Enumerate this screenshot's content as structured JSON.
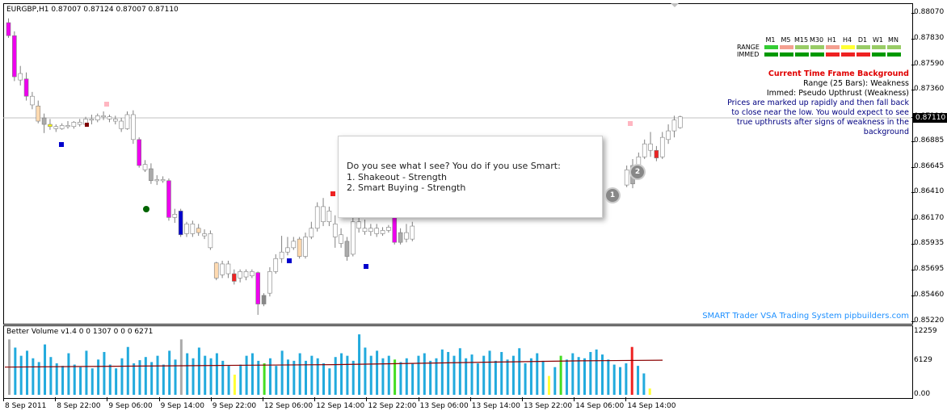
{
  "chart_header": {
    "symbol_line": "EURGBP,H1  0.87007 0.87124 0.87007 0.87110"
  },
  "volume_header": "Better Volume v1.4 0 0 1307 0 0 0 6271",
  "watermark": "SMART Trader VSA Trading System pipbuilders.com",
  "current_price_label": "0.87110",
  "mtf_panel": {
    "timeframes": [
      "M1",
      "M5",
      "M15",
      "M30",
      "H1",
      "H4",
      "D1",
      "W1",
      "MN"
    ],
    "rows": [
      {
        "label": "RANGE",
        "colors": [
          "#33cc33",
          "#f4a090",
          "#99cc66",
          "#99cc66",
          "#f4a090",
          "#ffff33",
          "#99cc66",
          "#99cc66",
          "#99cc66"
        ]
      },
      {
        "label": "IMMED",
        "colors": [
          "#009900",
          "#009900",
          "#009900",
          "#009900",
          "#ee2222",
          "#ee2222",
          "#ee2222",
          "#009900",
          "#009900"
        ]
      }
    ]
  },
  "info_panel": {
    "title": "Current Time Frame Background",
    "range_line": "Range (25 Bars): Weakness",
    "immed_line": "Immed: Pseudo Upthrust (Weakness)",
    "description": [
      "Prices are marked up rapidly and then fall back",
      "to close near the low. You would expect to see",
      "true upthrusts after signs of weakness in the",
      "background"
    ]
  },
  "popup": {
    "line1": "Do you see what I see?  You do if you use Smart:",
    "line2": "1. Shakeout - Strength",
    "line3": "2. Smart Buying - Strength"
  },
  "badges": [
    "1",
    "2"
  ],
  "chart_data": {
    "type": "candlestick",
    "symbol": "EURGBP",
    "timeframe": "H1",
    "price_axis_ticks": [
      "0.88070",
      "0.87830",
      "0.87590",
      "0.87360",
      "0.87110",
      "0.86885",
      "0.86645",
      "0.86410",
      "0.86170",
      "0.85935",
      "0.85695",
      "0.85460",
      "0.85220"
    ],
    "price_axis_values": [
      0.8807,
      0.8783,
      0.8759,
      0.8736,
      0.8711,
      0.86885,
      0.86645,
      0.8641,
      0.8617,
      0.85935,
      0.85695,
      0.8546,
      0.8522
    ],
    "volume_axis_ticks": [
      "12259",
      "6129",
      "0.00"
    ],
    "time_axis_labels": [
      "8 Sep 2011",
      "8 Sep 22:00",
      "9 Sep 06:00",
      "9 Sep 14:00",
      "9 Sep 22:00",
      "12 Sep 06:00",
      "12 Sep 14:00",
      "12 Sep 22:00",
      "13 Sep 06:00",
      "13 Sep 14:00",
      "13 Sep 22:00",
      "14 Sep 06:00",
      "14 Sep 14:00"
    ],
    "last_price": 0.8711,
    "candles": [
      {
        "o": 0.8798,
        "h": 0.8802,
        "c": 0.8786,
        "l": 0.8784,
        "color": "#ee00ee"
      },
      {
        "o": 0.8786,
        "h": 0.879,
        "c": 0.8748,
        "l": 0.8744,
        "color": "#ee00ee"
      },
      {
        "o": 0.8751,
        "h": 0.8758,
        "c": 0.8745,
        "l": 0.874,
        "color": "#ffffff"
      },
      {
        "o": 0.8746,
        "h": 0.8752,
        "c": 0.873,
        "l": 0.8726,
        "color": "#ee00ee"
      },
      {
        "o": 0.873,
        "h": 0.8734,
        "c": 0.8722,
        "l": 0.8718,
        "color": "#ffffff"
      },
      {
        "o": 0.8721,
        "h": 0.8726,
        "c": 0.8707,
        "l": 0.8705,
        "color": "#ffdab0"
      },
      {
        "o": 0.871,
        "h": 0.8714,
        "c": 0.8704,
        "l": 0.8696,
        "color": "#aaaaaa"
      },
      {
        "o": 0.8704,
        "h": 0.8709,
        "c": 0.8702,
        "l": 0.8699,
        "color": "#ffff00"
      },
      {
        "o": 0.8702,
        "h": 0.8704,
        "c": 0.87,
        "l": 0.8697,
        "color": "#ffffff"
      },
      {
        "o": 0.87,
        "h": 0.8705,
        "c": 0.8703,
        "l": 0.8699,
        "color": "#ffffff"
      },
      {
        "o": 0.8703,
        "h": 0.8707,
        "c": 0.8702,
        "l": 0.87,
        "color": "#ffffff"
      },
      {
        "o": 0.8702,
        "h": 0.8707,
        "c": 0.8706,
        "l": 0.87,
        "color": "#ffffff"
      },
      {
        "o": 0.8706,
        "h": 0.8709,
        "c": 0.8704,
        "l": 0.8702,
        "color": "#ffffff"
      },
      {
        "o": 0.8704,
        "h": 0.8711,
        "c": 0.8709,
        "l": 0.8702,
        "color": "#ffffff"
      },
      {
        "o": 0.8709,
        "h": 0.8713,
        "c": 0.8708,
        "l": 0.8704,
        "color": "#ffffff"
      },
      {
        "o": 0.8708,
        "h": 0.8714,
        "c": 0.8712,
        "l": 0.8706,
        "color": "#ffffff"
      },
      {
        "o": 0.8712,
        "h": 0.8716,
        "c": 0.8711,
        "l": 0.8708,
        "color": "#ffffff"
      },
      {
        "o": 0.8711,
        "h": 0.8713,
        "c": 0.8709,
        "l": 0.8706,
        "color": "#ffffff"
      },
      {
        "o": 0.8709,
        "h": 0.8712,
        "c": 0.8707,
        "l": 0.8704,
        "color": "#ffffff"
      },
      {
        "o": 0.8707,
        "h": 0.871,
        "c": 0.87,
        "l": 0.8697,
        "color": "#ffffff"
      },
      {
        "o": 0.87,
        "h": 0.8716,
        "c": 0.8713,
        "l": 0.8699,
        "color": "#ffffff"
      },
      {
        "o": 0.8713,
        "h": 0.8717,
        "c": 0.869,
        "l": 0.8686,
        "color": "#ffffff"
      },
      {
        "o": 0.869,
        "h": 0.8692,
        "c": 0.8666,
        "l": 0.8664,
        "color": "#ee00ee"
      },
      {
        "o": 0.8667,
        "h": 0.8671,
        "c": 0.8662,
        "l": 0.866,
        "color": "#ffffff"
      },
      {
        "o": 0.8663,
        "h": 0.8668,
        "c": 0.8652,
        "l": 0.8649,
        "color": "#aaaaaa"
      },
      {
        "o": 0.8652,
        "h": 0.8657,
        "c": 0.8653,
        "l": 0.8648,
        "color": "#ffffff"
      },
      {
        "o": 0.8653,
        "h": 0.8656,
        "c": 0.8652,
        "l": 0.865,
        "color": "#ffffff"
      },
      {
        "o": 0.8652,
        "h": 0.8654,
        "c": 0.8618,
        "l": 0.8615,
        "color": "#ee00ee"
      },
      {
        "o": 0.8618,
        "h": 0.8626,
        "c": 0.8621,
        "l": 0.8613,
        "color": "#ffffff"
      },
      {
        "o": 0.8624,
        "h": 0.8626,
        "c": 0.8602,
        "l": 0.86,
        "color": "#0000cc"
      },
      {
        "o": 0.8603,
        "h": 0.8614,
        "c": 0.8612,
        "l": 0.86,
        "color": "#ffffff"
      },
      {
        "o": 0.8612,
        "h": 0.8615,
        "c": 0.8603,
        "l": 0.86,
        "color": "#ffffff"
      },
      {
        "o": 0.8604,
        "h": 0.8612,
        "c": 0.8608,
        "l": 0.8601,
        "color": "#ffdab0"
      },
      {
        "o": 0.8601,
        "h": 0.8607,
        "c": 0.8603,
        "l": 0.8598,
        "color": "#ffffff"
      },
      {
        "o": 0.8603,
        "h": 0.8606,
        "c": 0.859,
        "l": 0.8588,
        "color": "#ffffff"
      },
      {
        "o": 0.8576,
        "h": 0.8577,
        "c": 0.8562,
        "l": 0.856,
        "color": "#ffdab0"
      },
      {
        "o": 0.8565,
        "h": 0.8578,
        "c": 0.8575,
        "l": 0.8562,
        "color": "#ffffff"
      },
      {
        "o": 0.8575,
        "h": 0.8578,
        "c": 0.8566,
        "l": 0.8562,
        "color": "#ffffff"
      },
      {
        "o": 0.8566,
        "h": 0.857,
        "c": 0.8559,
        "l": 0.8556,
        "color": "#ee2222"
      },
      {
        "o": 0.8562,
        "h": 0.857,
        "c": 0.8568,
        "l": 0.8558,
        "color": "#ffffff"
      },
      {
        "o": 0.8568,
        "h": 0.857,
        "c": 0.8563,
        "l": 0.856,
        "color": "#ffffff"
      },
      {
        "o": 0.8568,
        "h": 0.857,
        "c": 0.8564,
        "l": 0.8562,
        "color": "#ffffff"
      },
      {
        "o": 0.8567,
        "h": 0.8568,
        "c": 0.8538,
        "l": 0.8528,
        "color": "#ee00ee"
      },
      {
        "o": 0.8538,
        "h": 0.8548,
        "c": 0.8546,
        "l": 0.8536,
        "color": "#888888"
      },
      {
        "o": 0.8548,
        "h": 0.8572,
        "c": 0.8568,
        "l": 0.8545,
        "color": "#ffffff"
      },
      {
        "o": 0.8568,
        "h": 0.8584,
        "c": 0.858,
        "l": 0.8566,
        "color": "#ffffff"
      },
      {
        "o": 0.858,
        "h": 0.8601,
        "c": 0.8586,
        "l": 0.8576,
        "color": "#ffffff"
      },
      {
        "o": 0.8586,
        "h": 0.86,
        "c": 0.859,
        "l": 0.8583,
        "color": "#ffffff"
      },
      {
        "o": 0.859,
        "h": 0.86,
        "c": 0.8596,
        "l": 0.8588,
        "color": "#ffffff"
      },
      {
        "o": 0.8598,
        "h": 0.86,
        "c": 0.8582,
        "l": 0.858,
        "color": "#ffdab0"
      },
      {
        "o": 0.8582,
        "h": 0.8604,
        "c": 0.86,
        "l": 0.858,
        "color": "#ffffff"
      },
      {
        "o": 0.86,
        "h": 0.8614,
        "c": 0.8608,
        "l": 0.8598,
        "color": "#ffffff"
      },
      {
        "o": 0.8608,
        "h": 0.8632,
        "c": 0.8628,
        "l": 0.8605,
        "color": "#ffffff"
      },
      {
        "o": 0.8628,
        "h": 0.8636,
        "c": 0.8614,
        "l": 0.861,
        "color": "#ffffff"
      },
      {
        "o": 0.8614,
        "h": 0.8628,
        "c": 0.8624,
        "l": 0.861,
        "color": "#ffffff"
      },
      {
        "o": 0.8612,
        "h": 0.862,
        "c": 0.86,
        "l": 0.859,
        "color": "#ffffff"
      },
      {
        "o": 0.8602,
        "h": 0.8608,
        "c": 0.8594,
        "l": 0.859,
        "color": "#ffffff"
      },
      {
        "o": 0.8596,
        "h": 0.86,
        "c": 0.8582,
        "l": 0.8578,
        "color": "#aaaaaa"
      },
      {
        "o": 0.8584,
        "h": 0.8618,
        "c": 0.8614,
        "l": 0.8582,
        "color": "#ffffff"
      },
      {
        "o": 0.8614,
        "h": 0.8622,
        "c": 0.8608,
        "l": 0.8604,
        "color": "#ffffff"
      },
      {
        "o": 0.8608,
        "h": 0.8616,
        "c": 0.8605,
        "l": 0.8602,
        "color": "#ffffff"
      },
      {
        "o": 0.8605,
        "h": 0.8612,
        "c": 0.8608,
        "l": 0.8601,
        "color": "#ffffff"
      },
      {
        "o": 0.8608,
        "h": 0.8612,
        "c": 0.8603,
        "l": 0.86,
        "color": "#ffffff"
      },
      {
        "o": 0.8603,
        "h": 0.8609,
        "c": 0.8606,
        "l": 0.8601,
        "color": "#ffffff"
      },
      {
        "o": 0.8606,
        "h": 0.8611,
        "c": 0.8609,
        "l": 0.8604,
        "color": "#ffffff"
      },
      {
        "o": 0.8618,
        "h": 0.8624,
        "c": 0.8595,
        "l": 0.8593,
        "color": "#ee00ee"
      },
      {
        "o": 0.8595,
        "h": 0.8608,
        "c": 0.8604,
        "l": 0.8593,
        "color": "#aaaaaa"
      },
      {
        "o": 0.8604,
        "h": 0.8612,
        "c": 0.8598,
        "l": 0.8595,
        "color": "#ffffff"
      },
      {
        "o": 0.8598,
        "h": 0.8614,
        "c": 0.861,
        "l": 0.8596,
        "color": "#ffffff"
      },
      {
        "o": 0.8648,
        "h": 0.8666,
        "c": 0.8662,
        "l": 0.8646,
        "color": "#ffffff"
      },
      {
        "o": 0.8666,
        "h": 0.8672,
        "c": 0.8649,
        "l": 0.8645,
        "color": "#aaaaaa"
      },
      {
        "o": 0.866,
        "h": 0.8678,
        "c": 0.8674,
        "l": 0.8656,
        "color": "#ffffff"
      },
      {
        "o": 0.8674,
        "h": 0.869,
        "c": 0.8686,
        "l": 0.8672,
        "color": "#ffffff"
      },
      {
        "o": 0.8686,
        "h": 0.8697,
        "c": 0.868,
        "l": 0.8674,
        "color": "#ffffff"
      },
      {
        "o": 0.868,
        "h": 0.8684,
        "c": 0.8673,
        "l": 0.867,
        "color": "#ee2222"
      },
      {
        "o": 0.8674,
        "h": 0.8697,
        "c": 0.8692,
        "l": 0.8672,
        "color": "#ffffff"
      },
      {
        "o": 0.869,
        "h": 0.8704,
        "c": 0.8698,
        "l": 0.8686,
        "color": "#ffffff"
      },
      {
        "o": 0.8698,
        "h": 0.8712,
        "c": 0.8708,
        "l": 0.8692,
        "color": "#ffffff"
      },
      {
        "o": 0.8701,
        "h": 0.8712,
        "c": 0.8711,
        "l": 0.87,
        "color": "#ffffff"
      }
    ],
    "volume_max": 12259,
    "volume": [
      {
        "v": 0.88,
        "color": "#aaaaaa"
      },
      {
        "v": 0.75,
        "color": "#22aadd"
      },
      {
        "v": 0.62,
        "color": "#22aadd"
      },
      {
        "v": 0.7,
        "color": "#22aadd"
      },
      {
        "v": 0.58,
        "color": "#22aadd"
      },
      {
        "v": 0.52,
        "color": "#22aadd"
      },
      {
        "v": 0.8,
        "color": "#22aadd"
      },
      {
        "v": 0.6,
        "color": "#22aadd"
      },
      {
        "v": 0.5,
        "color": "#22aadd"
      },
      {
        "v": 0.46,
        "color": "#22aadd"
      },
      {
        "v": 0.66,
        "color": "#22aadd"
      },
      {
        "v": 0.48,
        "color": "#22aadd"
      },
      {
        "v": 0.44,
        "color": "#22aadd"
      },
      {
        "v": 0.7,
        "color": "#22aadd"
      },
      {
        "v": 0.42,
        "color": "#22aadd"
      },
      {
        "v": 0.56,
        "color": "#22aadd"
      },
      {
        "v": 0.68,
        "color": "#22aadd"
      },
      {
        "v": 0.48,
        "color": "#22aadd"
      },
      {
        "v": 0.42,
        "color": "#22aadd"
      },
      {
        "v": 0.58,
        "color": "#22aadd"
      },
      {
        "v": 0.76,
        "color": "#22aadd"
      },
      {
        "v": 0.5,
        "color": "#22aadd"
      },
      {
        "v": 0.55,
        "color": "#22aadd"
      },
      {
        "v": 0.6,
        "color": "#22aadd"
      },
      {
        "v": 0.52,
        "color": "#22aadd"
      },
      {
        "v": 0.62,
        "color": "#22aadd"
      },
      {
        "v": 0.48,
        "color": "#22aadd"
      },
      {
        "v": 0.7,
        "color": "#22aadd"
      },
      {
        "v": 0.56,
        "color": "#22aadd"
      },
      {
        "v": 0.88,
        "color": "#aaaaaa"
      },
      {
        "v": 0.66,
        "color": "#22aadd"
      },
      {
        "v": 0.58,
        "color": "#22aadd"
      },
      {
        "v": 0.75,
        "color": "#22aadd"
      },
      {
        "v": 0.62,
        "color": "#22aadd"
      },
      {
        "v": 0.58,
        "color": "#22aadd"
      },
      {
        "v": 0.66,
        "color": "#22aadd"
      },
      {
        "v": 0.54,
        "color": "#22aadd"
      },
      {
        "v": 0.46,
        "color": "#22aadd"
      },
      {
        "v": 0.32,
        "color": "#ffff33"
      },
      {
        "v": 0.48,
        "color": "#22aadd"
      },
      {
        "v": 0.62,
        "color": "#22aadd"
      },
      {
        "v": 0.66,
        "color": "#22aadd"
      },
      {
        "v": 0.54,
        "color": "#22aadd"
      },
      {
        "v": 0.5,
        "color": "#44dd22"
      },
      {
        "v": 0.58,
        "color": "#22aadd"
      },
      {
        "v": 0.46,
        "color": "#22aadd"
      },
      {
        "v": 0.7,
        "color": "#22aadd"
      },
      {
        "v": 0.56,
        "color": "#22aadd"
      },
      {
        "v": 0.54,
        "color": "#22aadd"
      },
      {
        "v": 0.66,
        "color": "#22aadd"
      },
      {
        "v": 0.54,
        "color": "#22aadd"
      },
      {
        "v": 0.62,
        "color": "#22aadd"
      },
      {
        "v": 0.58,
        "color": "#22aadd"
      },
      {
        "v": 0.5,
        "color": "#22aadd"
      },
      {
        "v": 0.42,
        "color": "#22aadd"
      },
      {
        "v": 0.6,
        "color": "#22aadd"
      },
      {
        "v": 0.66,
        "color": "#22aadd"
      },
      {
        "v": 0.62,
        "color": "#22aadd"
      },
      {
        "v": 0.54,
        "color": "#22aadd"
      },
      {
        "v": 0.96,
        "color": "#22aadd"
      },
      {
        "v": 0.75,
        "color": "#22aadd"
      },
      {
        "v": 0.62,
        "color": "#22aadd"
      },
      {
        "v": 0.7,
        "color": "#22aadd"
      },
      {
        "v": 0.58,
        "color": "#22aadd"
      },
      {
        "v": 0.62,
        "color": "#22aadd"
      },
      {
        "v": 0.56,
        "color": "#44dd22"
      },
      {
        "v": 0.52,
        "color": "#22aadd"
      },
      {
        "v": 0.58,
        "color": "#22aadd"
      },
      {
        "v": 0.5,
        "color": "#22aadd"
      },
      {
        "v": 0.62,
        "color": "#22aadd"
      },
      {
        "v": 0.66,
        "color": "#22aadd"
      },
      {
        "v": 0.54,
        "color": "#22aadd"
      },
      {
        "v": 0.58,
        "color": "#22aadd"
      },
      {
        "v": 0.72,
        "color": "#22aadd"
      },
      {
        "v": 0.68,
        "color": "#22aadd"
      },
      {
        "v": 0.62,
        "color": "#22aadd"
      },
      {
        "v": 0.74,
        "color": "#22aadd"
      },
      {
        "v": 0.58,
        "color": "#22aadd"
      },
      {
        "v": 0.64,
        "color": "#22aadd"
      },
      {
        "v": 0.5,
        "color": "#22aadd"
      },
      {
        "v": 0.62,
        "color": "#22aadd"
      },
      {
        "v": 0.7,
        "color": "#22aadd"
      },
      {
        "v": 0.54,
        "color": "#22aadd"
      },
      {
        "v": 0.68,
        "color": "#22aadd"
      },
      {
        "v": 0.56,
        "color": "#22aadd"
      },
      {
        "v": 0.62,
        "color": "#22aadd"
      },
      {
        "v": 0.74,
        "color": "#22aadd"
      },
      {
        "v": 0.5,
        "color": "#22aadd"
      },
      {
        "v": 0.58,
        "color": "#22aadd"
      },
      {
        "v": 0.66,
        "color": "#22aadd"
      },
      {
        "v": 0.54,
        "color": "#22aadd"
      },
      {
        "v": 0.3,
        "color": "#ffff33"
      },
      {
        "v": 0.44,
        "color": "#22aadd"
      },
      {
        "v": 0.62,
        "color": "#44dd22"
      },
      {
        "v": 0.56,
        "color": "#22aadd"
      },
      {
        "v": 0.66,
        "color": "#22aadd"
      },
      {
        "v": 0.6,
        "color": "#22aadd"
      },
      {
        "v": 0.58,
        "color": "#22aadd"
      },
      {
        "v": 0.68,
        "color": "#22aadd"
      },
      {
        "v": 0.72,
        "color": "#22aadd"
      },
      {
        "v": 0.64,
        "color": "#22aadd"
      },
      {
        "v": 0.56,
        "color": "#22aadd"
      },
      {
        "v": 0.48,
        "color": "#22aadd"
      },
      {
        "v": 0.44,
        "color": "#22aadd"
      },
      {
        "v": 0.5,
        "color": "#22aadd"
      },
      {
        "v": 0.76,
        "color": "#ee2222"
      },
      {
        "v": 0.46,
        "color": "#22aadd"
      },
      {
        "v": 0.34,
        "color": "#22aadd"
      },
      {
        "v": 0.1,
        "color": "#ffff33"
      }
    ],
    "volume_ma": [
      0.44,
      0.45,
      0.46,
      0.47,
      0.48,
      0.5,
      0.52,
      0.54,
      0.55
    ]
  }
}
